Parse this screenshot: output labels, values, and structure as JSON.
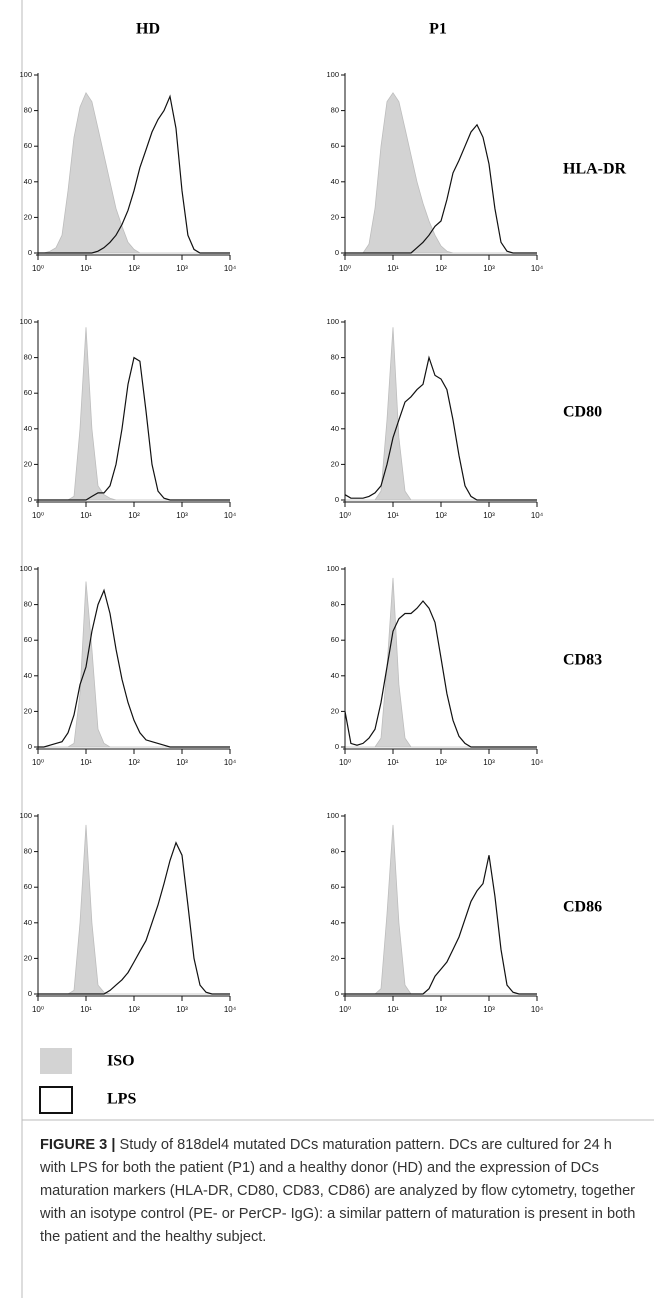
{
  "columns": [
    "HD",
    "P1"
  ],
  "rows": [
    "HLA-DR",
    "CD80",
    "CD83",
    "CD86"
  ],
  "legend": [
    {
      "name": "ISO",
      "color": "#d3d3d3",
      "fill": true
    },
    {
      "name": "LPS",
      "color": "#111111",
      "fill": false
    }
  ],
  "caption": {
    "label": "FIGURE 3 |",
    "text": "Study of 818del4 mutated DCs maturation pattern. DCs are cultured for 24 h with LPS for both the patient (P1) and a healthy donor (HD) and the expression of DCs maturation markers (HLA-DR, CD80, CD83, CD86) are analyzed by flow cytometry, together with an isotype control (PE- or PerCP- IgG): a similar pattern of maturation is present in both the patient and the healthy subject."
  },
  "axes": {
    "xscale": "log",
    "xlim": [
      1,
      10000
    ],
    "xticks": [
      {
        "value": 1,
        "label": "10⁰"
      },
      {
        "value": 10,
        "label": "10¹"
      },
      {
        "value": 100,
        "label": "10²"
      },
      {
        "value": 1000,
        "label": "10³"
      },
      {
        "value": 10000,
        "label": "10⁴"
      }
    ],
    "ylim": [
      0,
      100
    ],
    "yticks": [
      0,
      20,
      40,
      60,
      80,
      100
    ]
  },
  "x": [
    1,
    1.33,
    1.78,
    2.37,
    3.16,
    4.22,
    5.62,
    7.5,
    10,
    13.3,
    17.8,
    23.7,
    31.6,
    42.2,
    56.2,
    75,
    100,
    133,
    178,
    237,
    316,
    422,
    562,
    750,
    1000,
    1330,
    1780,
    2370,
    3160,
    4220,
    5620,
    7500,
    10000
  ],
  "chart_data": [
    {
      "type": "line",
      "series": [
        {
          "color": "#d3d3d3",
          "fill": true,
          "values": [
            0,
            0,
            1,
            3,
            10,
            35,
            65,
            82,
            90,
            85,
            70,
            55,
            40,
            25,
            15,
            6,
            2,
            0,
            0,
            0,
            0,
            0,
            0,
            0,
            0,
            0,
            0,
            0,
            0,
            0,
            0,
            0,
            0
          ]
        },
        {
          "color": "#111111",
          "fill": false,
          "values": [
            0,
            0,
            0,
            0,
            0,
            0,
            0,
            0,
            0,
            0,
            1,
            3,
            6,
            10,
            16,
            24,
            35,
            48,
            58,
            68,
            75,
            80,
            88,
            70,
            35,
            10,
            2,
            0,
            0,
            0,
            0,
            0,
            0
          ]
        }
      ]
    },
    {
      "type": "line",
      "series": [
        {
          "color": "#d3d3d3",
          "fill": true,
          "values": [
            0,
            0,
            0,
            0,
            5,
            25,
            60,
            85,
            90,
            85,
            70,
            55,
            40,
            28,
            18,
            10,
            4,
            1,
            0,
            0,
            0,
            0,
            0,
            0,
            0,
            0,
            0,
            0,
            0,
            0,
            0,
            0,
            0
          ]
        },
        {
          "color": "#111111",
          "fill": false,
          "values": [
            0,
            0,
            0,
            0,
            0,
            0,
            0,
            0,
            0,
            0,
            0,
            0,
            3,
            6,
            10,
            15,
            18,
            30,
            45,
            52,
            60,
            68,
            72,
            65,
            50,
            25,
            6,
            1,
            0,
            0,
            0,
            0,
            0
          ]
        }
      ]
    },
    {
      "type": "line",
      "series": [
        {
          "color": "#d3d3d3",
          "fill": true,
          "values": [
            0,
            0,
            0,
            0,
            0,
            0,
            2,
            40,
            97,
            40,
            8,
            3,
            1,
            0,
            0,
            0,
            0,
            0,
            0,
            0,
            0,
            0,
            0,
            0,
            0,
            0,
            0,
            0,
            0,
            0,
            0,
            0,
            0
          ]
        },
        {
          "color": "#111111",
          "fill": false,
          "values": [
            0,
            0,
            0,
            0,
            0,
            0,
            0,
            0,
            0,
            2,
            4,
            4,
            8,
            20,
            40,
            65,
            80,
            78,
            50,
            20,
            5,
            1,
            0,
            0,
            0,
            0,
            0,
            0,
            0,
            0,
            0,
            0,
            0
          ]
        }
      ]
    },
    {
      "type": "line",
      "series": [
        {
          "color": "#d3d3d3",
          "fill": true,
          "values": [
            0,
            0,
            0,
            0,
            0,
            0,
            5,
            45,
            97,
            35,
            5,
            0,
            0,
            0,
            0,
            0,
            0,
            0,
            0,
            0,
            0,
            0,
            0,
            0,
            0,
            0,
            0,
            0,
            0,
            0,
            0,
            0,
            0
          ]
        },
        {
          "color": "#111111",
          "fill": false,
          "values": [
            3,
            1,
            1,
            1,
            2,
            4,
            8,
            20,
            35,
            45,
            55,
            58,
            62,
            65,
            80,
            70,
            68,
            62,
            45,
            25,
            8,
            2,
            0,
            0,
            0,
            0,
            0,
            0,
            0,
            0,
            0,
            0,
            0
          ]
        }
      ]
    },
    {
      "type": "line",
      "series": [
        {
          "color": "#d3d3d3",
          "fill": true,
          "values": [
            0,
            0,
            0,
            0,
            0,
            0,
            2,
            30,
            93,
            55,
            10,
            2,
            0,
            0,
            0,
            0,
            0,
            0,
            0,
            0,
            0,
            0,
            0,
            0,
            0,
            0,
            0,
            0,
            0,
            0,
            0,
            0,
            0
          ]
        },
        {
          "color": "#111111",
          "fill": false,
          "values": [
            0,
            0,
            1,
            2,
            3,
            8,
            18,
            35,
            45,
            65,
            80,
            88,
            75,
            55,
            38,
            25,
            15,
            8,
            4,
            3,
            2,
            1,
            0,
            0,
            0,
            0,
            0,
            0,
            0,
            0,
            0,
            0,
            0
          ]
        }
      ]
    },
    {
      "type": "line",
      "series": [
        {
          "color": "#d3d3d3",
          "fill": true,
          "values": [
            0,
            0,
            0,
            0,
            0,
            0,
            5,
            45,
            95,
            35,
            5,
            0,
            0,
            0,
            0,
            0,
            0,
            0,
            0,
            0,
            0,
            0,
            0,
            0,
            0,
            0,
            0,
            0,
            0,
            0,
            0,
            0,
            0
          ]
        },
        {
          "color": "#111111",
          "fill": false,
          "values": [
            20,
            2,
            1,
            2,
            5,
            10,
            25,
            45,
            65,
            72,
            75,
            75,
            78,
            82,
            78,
            70,
            50,
            30,
            15,
            6,
            2,
            0,
            0,
            0,
            0,
            0,
            0,
            0,
            0,
            0,
            0,
            0,
            0
          ]
        }
      ]
    },
    {
      "type": "line",
      "series": [
        {
          "color": "#d3d3d3",
          "fill": true,
          "values": [
            0,
            0,
            0,
            0,
            0,
            0,
            2,
            40,
            95,
            40,
            5,
            1,
            0,
            0,
            0,
            0,
            0,
            0,
            0,
            0,
            0,
            0,
            0,
            0,
            0,
            0,
            0,
            0,
            0,
            0,
            0,
            0,
            0
          ]
        },
        {
          "color": "#111111",
          "fill": false,
          "values": [
            0,
            0,
            0,
            0,
            0,
            0,
            0,
            0,
            0,
            0,
            0,
            0,
            2,
            5,
            8,
            12,
            18,
            24,
            30,
            40,
            50,
            62,
            75,
            85,
            78,
            50,
            20,
            5,
            1,
            0,
            0,
            0,
            0
          ]
        }
      ]
    },
    {
      "type": "line",
      "series": [
        {
          "color": "#d3d3d3",
          "fill": true,
          "values": [
            0,
            0,
            0,
            0,
            0,
            0,
            3,
            45,
            95,
            40,
            5,
            0,
            0,
            0,
            0,
            0,
            0,
            0,
            0,
            0,
            0,
            0,
            0,
            0,
            0,
            0,
            0,
            0,
            0,
            0,
            0,
            0,
            0
          ]
        },
        {
          "color": "#111111",
          "fill": false,
          "values": [
            0,
            0,
            0,
            0,
            0,
            0,
            0,
            0,
            0,
            0,
            0,
            0,
            0,
            0,
            3,
            10,
            14,
            18,
            25,
            32,
            42,
            52,
            58,
            62,
            78,
            55,
            25,
            5,
            1,
            0,
            0,
            0,
            0
          ]
        }
      ]
    }
  ]
}
